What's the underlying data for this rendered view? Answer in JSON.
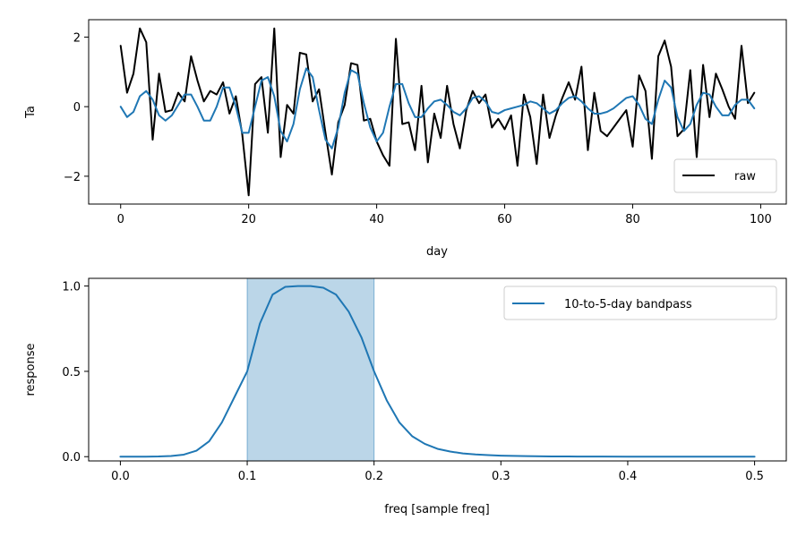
{
  "colors": {
    "raw": "#000000",
    "filtered": "#1f77b4",
    "band_fill": "#1f77b4",
    "axis": "#000000"
  },
  "chart_data": [
    {
      "type": "line",
      "xlabel": "day",
      "ylabel": "Ta",
      "xlim": [
        -5,
        104
      ],
      "ylim": [
        -2.8,
        2.5
      ],
      "xticks": [
        0,
        20,
        40,
        60,
        80,
        100
      ],
      "xtick_labels": [
        "0",
        "20",
        "40",
        "60",
        "80",
        "100"
      ],
      "yticks": [
        -2,
        0,
        2
      ],
      "ytick_labels": [
        "−2",
        "0",
        "2"
      ],
      "legend": {
        "entries": [
          "raw"
        ],
        "location": "lower-right"
      },
      "series": [
        {
          "name": "raw",
          "color": "#000000",
          "x": [
            0,
            1,
            2,
            3,
            4,
            5,
            6,
            7,
            8,
            9,
            10,
            11,
            12,
            13,
            14,
            15,
            16,
            17,
            18,
            19,
            20,
            21,
            22,
            23,
            24,
            25,
            26,
            27,
            28,
            29,
            30,
            31,
            32,
            33,
            34,
            35,
            36,
            37,
            38,
            39,
            40,
            41,
            42,
            43,
            44,
            45,
            46,
            47,
            48,
            49,
            50,
            51,
            52,
            53,
            54,
            55,
            56,
            57,
            58,
            59,
            60,
            61,
            62,
            63,
            64,
            65,
            66,
            67,
            68,
            69,
            70,
            71,
            72,
            73,
            74,
            75,
            76,
            77,
            78,
            79,
            80,
            81,
            82,
            83,
            84,
            85,
            86,
            87,
            88,
            89,
            90,
            91,
            92,
            93,
            94,
            95,
            96,
            97,
            98,
            99
          ],
          "values": [
            1.75,
            0.4,
            0.95,
            2.25,
            1.85,
            -0.95,
            0.95,
            -0.15,
            -0.1,
            0.4,
            0.15,
            1.45,
            0.75,
            0.15,
            0.45,
            0.35,
            0.7,
            -0.2,
            0.3,
            -0.8,
            -2.55,
            0.65,
            0.85,
            -0.75,
            2.25,
            -1.45,
            0.05,
            -0.2,
            1.55,
            1.5,
            0.15,
            0.5,
            -0.75,
            -1.95,
            -0.45,
            0.05,
            1.25,
            1.2,
            -0.4,
            -0.35,
            -1.0,
            -1.4,
            -1.7,
            1.95,
            -0.5,
            -0.45,
            -1.25,
            0.6,
            -1.6,
            -0.2,
            -0.9,
            0.6,
            -0.5,
            -1.2,
            -0.1,
            0.45,
            0.1,
            0.35,
            -0.6,
            -0.35,
            -0.65,
            -0.25,
            -1.7,
            0.35,
            -0.3,
            -1.65,
            0.35,
            -0.9,
            -0.25,
            0.25,
            0.7,
            0.2,
            1.15,
            -1.25,
            0.4,
            -0.7,
            -0.85,
            -0.6,
            -0.35,
            -0.1,
            -1.15,
            0.9,
            0.45,
            -1.5,
            1.45,
            1.9,
            1.15,
            -0.85,
            -0.65,
            1.05,
            -1.45,
            1.2,
            -0.3,
            0.95,
            0.5,
            0.0,
            -0.35,
            1.75,
            0.1,
            0.4
          ]
        },
        {
          "name": "10-to-5-day bandpass",
          "color": "#1f77b4",
          "x": [
            0,
            1,
            2,
            3,
            4,
            5,
            6,
            7,
            8,
            9,
            10,
            11,
            12,
            13,
            14,
            15,
            16,
            17,
            18,
            19,
            20,
            21,
            22,
            23,
            24,
            25,
            26,
            27,
            28,
            29,
            30,
            31,
            32,
            33,
            34,
            35,
            36,
            37,
            38,
            39,
            40,
            41,
            42,
            43,
            44,
            45,
            46,
            47,
            48,
            49,
            50,
            51,
            52,
            53,
            54,
            55,
            56,
            57,
            58,
            59,
            60,
            61,
            62,
            63,
            64,
            65,
            66,
            67,
            68,
            69,
            70,
            71,
            72,
            73,
            74,
            75,
            76,
            77,
            78,
            79,
            80,
            81,
            82,
            83,
            84,
            85,
            86,
            87,
            88,
            89,
            90,
            91,
            92,
            93,
            94,
            95,
            96,
            97,
            98,
            99
          ],
          "values": [
            0.0,
            -0.3,
            -0.15,
            0.3,
            0.45,
            0.2,
            -0.25,
            -0.4,
            -0.25,
            0.05,
            0.35,
            0.35,
            0.0,
            -0.4,
            -0.4,
            0.0,
            0.55,
            0.55,
            0.0,
            -0.75,
            -0.75,
            0.0,
            0.75,
            0.85,
            0.3,
            -0.7,
            -1.0,
            -0.5,
            0.5,
            1.1,
            0.85,
            -0.1,
            -0.95,
            -1.2,
            -0.6,
            0.4,
            1.05,
            0.95,
            0.1,
            -0.6,
            -1.0,
            -0.75,
            0.0,
            0.65,
            0.65,
            0.1,
            -0.3,
            -0.3,
            -0.05,
            0.15,
            0.2,
            0.05,
            -0.15,
            -0.25,
            -0.05,
            0.25,
            0.3,
            0.15,
            -0.15,
            -0.2,
            -0.1,
            -0.05,
            0.0,
            0.05,
            0.15,
            0.1,
            -0.05,
            -0.2,
            -0.1,
            0.1,
            0.25,
            0.3,
            0.15,
            -0.05,
            -0.2,
            -0.2,
            -0.15,
            -0.05,
            0.1,
            0.25,
            0.3,
            0.05,
            -0.35,
            -0.5,
            0.2,
            0.75,
            0.55,
            -0.3,
            -0.7,
            -0.5,
            0.05,
            0.4,
            0.35,
            0.0,
            -0.25,
            -0.25,
            0.05,
            0.2,
            0.2,
            -0.05
          ]
        }
      ]
    },
    {
      "type": "area",
      "xlabel": "freq [sample freq]",
      "ylabel": "response",
      "xlim": [
        -0.025,
        0.525
      ],
      "ylim": [
        -0.025,
        1.045
      ],
      "xticks": [
        0.0,
        0.1,
        0.2,
        0.3,
        0.4,
        0.5
      ],
      "xtick_labels": [
        "0.0",
        "0.1",
        "0.2",
        "0.3",
        "0.4",
        "0.5"
      ],
      "yticks": [
        0.0,
        0.5,
        1.0
      ],
      "ytick_labels": [
        "0.0",
        "0.5",
        "1.0"
      ],
      "band": [
        0.1,
        0.2
      ],
      "legend": {
        "entries": [
          "10-to-5-day bandpass"
        ],
        "location": "top-right"
      },
      "series": [
        {
          "name": "10-to-5-day bandpass",
          "color": "#1f77b4",
          "x": [
            0.0,
            0.01,
            0.02,
            0.03,
            0.04,
            0.05,
            0.06,
            0.07,
            0.08,
            0.09,
            0.1,
            0.11,
            0.12,
            0.13,
            0.14,
            0.15,
            0.16,
            0.17,
            0.18,
            0.19,
            0.2,
            0.21,
            0.22,
            0.23,
            0.24,
            0.25,
            0.26,
            0.27,
            0.28,
            0.29,
            0.3,
            0.32,
            0.34,
            0.36,
            0.38,
            0.4,
            0.42,
            0.44,
            0.46,
            0.48,
            0.5
          ],
          "values": [
            0.0,
            0.0,
            0.0,
            0.001,
            0.004,
            0.012,
            0.035,
            0.09,
            0.2,
            0.35,
            0.5,
            0.78,
            0.95,
            0.995,
            1.0,
            1.0,
            0.99,
            0.95,
            0.85,
            0.7,
            0.5,
            0.33,
            0.2,
            0.12,
            0.075,
            0.046,
            0.03,
            0.019,
            0.013,
            0.009,
            0.006,
            0.003,
            0.0015,
            0.0008,
            0.0004,
            0.0002,
            0.0001,
            0.0,
            0.0,
            0.0,
            0.0
          ]
        }
      ]
    }
  ]
}
